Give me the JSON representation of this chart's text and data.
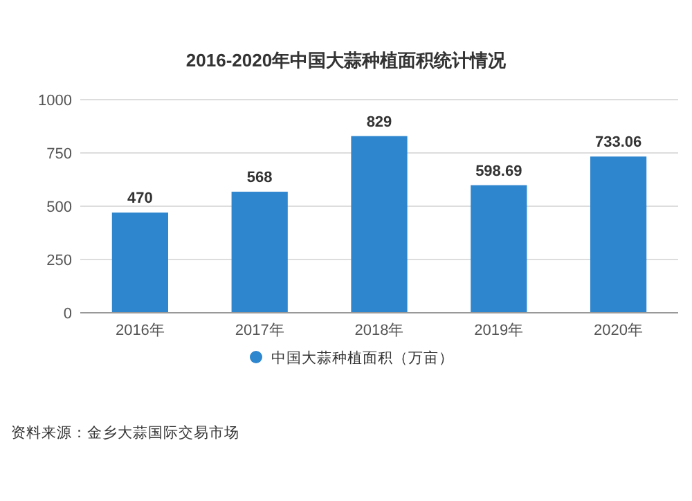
{
  "chart_data": {
    "type": "bar",
    "title": "2016-2020年中国大蒜种植面积统计情况",
    "categories": [
      "2016年",
      "2017年",
      "2018年",
      "2019年",
      "2020年"
    ],
    "series": [
      {
        "name": "中国大蒜种植面积（万亩）",
        "color": "#2e86cf",
        "values": [
          470,
          568,
          829,
          598.69,
          733.06
        ]
      }
    ],
    "ylim": [
      0,
      1000
    ],
    "yticks": [
      0,
      250,
      500,
      750,
      1000
    ],
    "grid": "y",
    "data_labels": true,
    "legend": "bottom",
    "annotations": [
      "资料来源：金乡大蒜国际交易市场"
    ]
  }
}
